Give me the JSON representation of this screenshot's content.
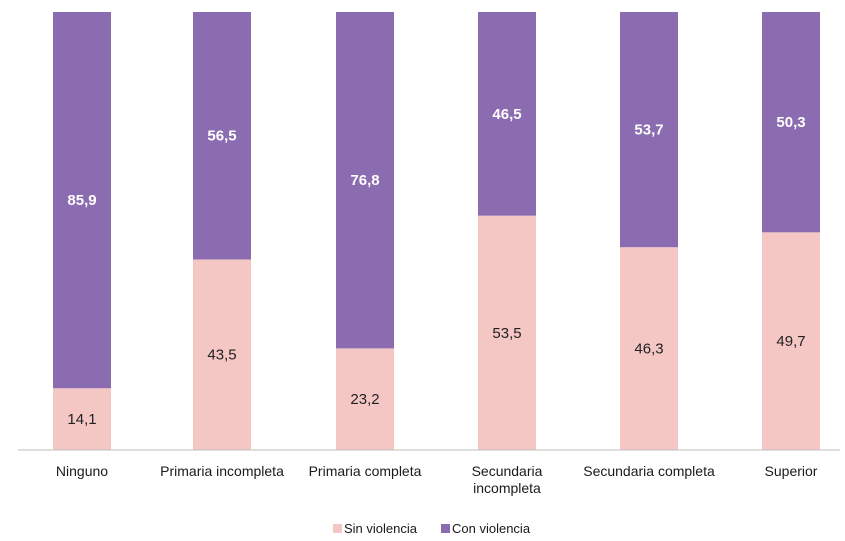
{
  "chart_data": {
    "type": "bar",
    "stacked": true,
    "percent": true,
    "categories": [
      [
        "Ninguno"
      ],
      [
        "Primaria incompleta"
      ],
      [
        "Primaria completa"
      ],
      [
        "Secundaria",
        "incompleta"
      ],
      [
        "Secundaria completa"
      ],
      [
        "Superior"
      ]
    ],
    "series": [
      {
        "name": "Sin violencia",
        "values": [
          "14,1",
          "43,5",
          "23,2",
          "53,5",
          "46,3",
          "49,7"
        ],
        "color": "#f4c6c4"
      },
      {
        "name": "Con violencia",
        "values": [
          "85,9",
          "56,5",
          "76,8",
          "46,5",
          "53,7",
          "50,3"
        ],
        "color": "#8b6cb0"
      }
    ],
    "ylim": [
      0,
      100
    ],
    "grid": false,
    "legend_position": "bottom-center"
  }
}
